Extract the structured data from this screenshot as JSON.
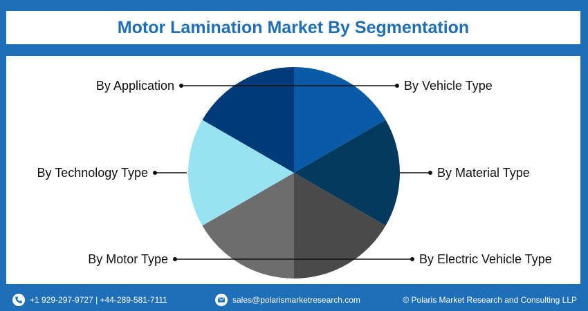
{
  "title": "Motor Lamination Market By Segmentation",
  "chart_data": {
    "type": "pie",
    "title": "Motor Lamination Market By Segmentation",
    "slices": [
      {
        "label": "By Vehicle Type",
        "value": 1,
        "color": "#0a5ba7",
        "side": "right"
      },
      {
        "label": "By Material Type",
        "value": 1,
        "color": "#033a5e",
        "side": "right"
      },
      {
        "label": "By Electric Vehicle Type",
        "value": 1,
        "color": "#4a4a4a",
        "side": "right"
      },
      {
        "label": "By Motor Type",
        "value": 1,
        "color": "#6d6d6d",
        "side": "left"
      },
      {
        "label": "By Technology Type",
        "value": 1,
        "color": "#97e3f2",
        "side": "left"
      },
      {
        "label": "By Application",
        "value": 1,
        "color": "#003a78",
        "side": "left"
      }
    ]
  },
  "footer": {
    "phone": "+1 929-297-9727 | +44-289-581-7111",
    "email": "sales@polarismarketresearch.com",
    "copyright": "© Polaris Market Research and Consulting LLP"
  },
  "colors": {
    "brand_blue": "#1f6fb8",
    "background": "#ffffff"
  },
  "icons": [
    "phone-icon",
    "email-icon"
  ]
}
